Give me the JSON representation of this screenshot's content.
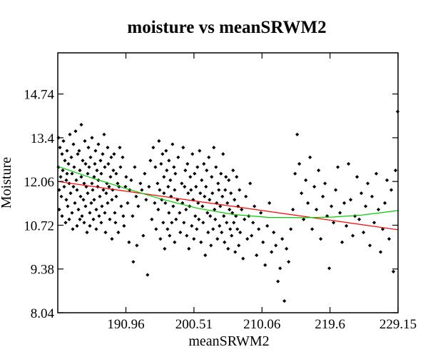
{
  "chart_data": {
    "type": "scatter",
    "title": "moisture vs meanSRWM2",
    "xlabel": "meanSRWM2",
    "ylabel": "Moisture",
    "xlim": [
      181.4,
      229.15
    ],
    "ylim": [
      8.04,
      16.0
    ],
    "x_ticks": [
      190.96,
      200.51,
      210.06,
      219.6,
      229.15
    ],
    "y_ticks": [
      8.04,
      9.38,
      10.72,
      12.06,
      13.4,
      14.74
    ],
    "grid": false,
    "legend": "none",
    "colors": {
      "points": "#000000",
      "linear_fit": "#ff0000",
      "poly_fit": "#00cc00"
    },
    "series": [
      {
        "kind": "points",
        "x": [
          181.5,
          181.5,
          181.6,
          181.6,
          181.7,
          181.8,
          181.9,
          182.0,
          182.0,
          182.1,
          182.2,
          182.3,
          182.4,
          182.5,
          182.6,
          182.6,
          182.7,
          182.7,
          182.8,
          182.9,
          183.0,
          183.0,
          183.1,
          183.2,
          183.3,
          183.4,
          183.4,
          183.5,
          183.6,
          183.6,
          183.7,
          183.8,
          183.9,
          184.0,
          184.1,
          184.1,
          184.2,
          184.3,
          184.4,
          184.5,
          184.5,
          184.6,
          184.7,
          184.7,
          184.8,
          184.9,
          185.0,
          185.1,
          185.1,
          185.2,
          185.3,
          185.3,
          185.4,
          185.5,
          185.6,
          185.6,
          185.7,
          185.8,
          185.9,
          185.9,
          186.0,
          186.1,
          186.2,
          186.2,
          186.3,
          186.4,
          186.5,
          186.5,
          186.6,
          186.7,
          186.8,
          186.8,
          186.9,
          187.0,
          187.1,
          187.1,
          187.2,
          187.3,
          187.4,
          187.5,
          187.5,
          187.6,
          187.7,
          187.8,
          187.9,
          188.0,
          188.0,
          188.1,
          188.2,
          188.3,
          188.4,
          188.4,
          188.5,
          188.6,
          188.7,
          188.8,
          188.9,
          189.0,
          189.0,
          189.1,
          189.2,
          189.3,
          189.4,
          189.5,
          189.6,
          189.6,
          189.8,
          189.9,
          190.0,
          190.1,
          190.2,
          190.3,
          190.5,
          190.6,
          190.7,
          190.9,
          191.0,
          191.2,
          191.4,
          191.5,
          191.7,
          191.9,
          192.0,
          192.2,
          192.4,
          192.5,
          192.7,
          193.0,
          193.2,
          193.4,
          193.6,
          193.8,
          194.0,
          194.2,
          194.4,
          194.6,
          194.8,
          195.0,
          195.1,
          195.2,
          195.4,
          195.5,
          195.6,
          195.7,
          195.8,
          195.9,
          196.0,
          196.1,
          196.2,
          196.3,
          196.3,
          196.4,
          196.5,
          196.6,
          196.7,
          196.8,
          196.9,
          197.0,
          197.0,
          197.1,
          197.2,
          197.3,
          197.4,
          197.5,
          197.6,
          197.7,
          197.8,
          197.8,
          197.9,
          198.0,
          198.2,
          198.3,
          198.5,
          198.6,
          198.8,
          198.9,
          199.0,
          199.1,
          199.2,
          199.3,
          199.4,
          199.5,
          199.6,
          199.7,
          199.8,
          199.9,
          200.0,
          200.1,
          200.2,
          200.3,
          200.4,
          200.5,
          200.6,
          200.7,
          200.8,
          200.9,
          201.0,
          201.1,
          201.2,
          201.3,
          201.4,
          201.5,
          201.6,
          201.7,
          201.8,
          201.9,
          202.0,
          202.1,
          202.2,
          202.3,
          202.4,
          202.5,
          202.6,
          202.7,
          202.8,
          202.9,
          203.0,
          203.1,
          203.2,
          203.3,
          203.4,
          203.5,
          203.6,
          203.7,
          203.8,
          203.9,
          204.0,
          204.1,
          204.2,
          204.3,
          204.4,
          204.5,
          204.6,
          204.7,
          204.8,
          204.9,
          205.0,
          205.1,
          205.2,
          205.3,
          205.4,
          205.5,
          205.6,
          205.7,
          205.8,
          205.9,
          206.0,
          206.1,
          206.2,
          206.3,
          206.4,
          206.5,
          206.6,
          206.7,
          206.8,
          206.9,
          207.0,
          207.2,
          207.4,
          207.6,
          207.8,
          208.0,
          208.2,
          208.4,
          208.6,
          208.8,
          209.0,
          209.3,
          209.6,
          209.9,
          210.2,
          210.5,
          210.8,
          211.1,
          211.4,
          211.7,
          212.0,
          212.3,
          212.6,
          212.9,
          213.2,
          213.5,
          213.8,
          214.1,
          214.4,
          214.7,
          215.0,
          215.3,
          215.6,
          215.9,
          216.2,
          216.5,
          216.8,
          217.1,
          217.4,
          217.7,
          218.0,
          218.3,
          218.6,
          218.9,
          219.2,
          219.5,
          219.8,
          220.1,
          220.4,
          220.7,
          221.0,
          221.3,
          221.6,
          221.9,
          222.2,
          222.5,
          222.8,
          223.1,
          223.4,
          223.7,
          224.0,
          224.3,
          224.6,
          224.9,
          225.2,
          225.5,
          225.8,
          226.1,
          226.4,
          226.7,
          227.0,
          227.3,
          227.6,
          227.9,
          228.2,
          228.5,
          228.8,
          229.1
        ],
        "y": [
          13.4,
          12.5,
          11.8,
          11.2,
          13.1,
          12.2,
          11.6,
          12.9,
          11.0,
          12.4,
          13.3,
          11.9,
          12.7,
          10.8,
          12.1,
          11.5,
          13.0,
          12.3,
          11.3,
          12.6,
          10.9,
          12.0,
          13.5,
          11.7,
          12.8,
          11.1,
          12.3,
          10.6,
          13.2,
          11.9,
          12.5,
          11.4,
          13.6,
          12.1,
          10.7,
          11.8,
          12.9,
          11.2,
          13.0,
          12.4,
          10.9,
          11.6,
          12.2,
          13.8,
          11.0,
          12.7,
          11.5,
          10.8,
          12.0,
          13.3,
          11.3,
          12.6,
          11.9,
          10.5,
          12.3,
          11.7,
          13.1,
          12.5,
          11.1,
          10.7,
          12.8,
          11.4,
          13.4,
          12.0,
          11.8,
          10.9,
          12.2,
          11.5,
          12.6,
          13.0,
          11.2,
          10.6,
          12.4,
          11.9,
          13.2,
          12.1,
          11.0,
          11.6,
          12.7,
          10.8,
          12.3,
          11.3,
          12.9,
          11.8,
          13.5,
          11.1,
          12.5,
          10.5,
          11.7,
          12.0,
          13.1,
          11.4,
          12.6,
          11.9,
          10.9,
          12.2,
          12.8,
          11.5,
          10.3,
          11.8,
          12.4,
          12.9,
          11.1,
          10.8,
          12.3,
          11.6,
          12.0,
          10.5,
          11.9,
          13.1,
          12.5,
          11.3,
          12.8,
          11.0,
          10.7,
          11.9,
          12.2,
          11.4,
          10.2,
          11.8,
          12.1,
          11.0,
          9.6,
          12.5,
          11.6,
          10.1,
          11.3,
          12.0,
          11.8,
          10.4,
          12.3,
          11.5,
          9.2,
          11.9,
          12.7,
          10.9,
          13.1,
          11.4,
          12.5,
          10.6,
          12.0,
          11.2,
          13.3,
          11.8,
          10.3,
          12.6,
          11.5,
          12.9,
          10.8,
          11.7,
          12.2,
          10.0,
          11.4,
          13.0,
          12.4,
          10.6,
          11.9,
          12.7,
          11.1,
          10.4,
          12.1,
          11.6,
          10.8,
          13.2,
          11.3,
          12.5,
          10.2,
          11.8,
          12.3,
          10.9,
          11.5,
          12.8,
          11.1,
          10.5,
          12.0,
          11.4,
          13.1,
          10.8,
          11.9,
          12.4,
          11.2,
          10.4,
          12.6,
          11.7,
          10.0,
          11.3,
          12.2,
          11.8,
          10.7,
          12.9,
          11.5,
          10.3,
          12.3,
          11.0,
          11.9,
          10.6,
          12.5,
          11.4,
          10.9,
          13.0,
          11.7,
          10.2,
          12.1,
          11.3,
          10.8,
          12.6,
          11.6,
          9.8,
          11.9,
          12.4,
          11.1,
          10.5,
          12.8,
          11.5,
          11.0,
          10.1,
          12.2,
          11.7,
          10.6,
          13.1,
          11.2,
          10.9,
          12.5,
          11.4,
          10.3,
          12.0,
          11.8,
          10.7,
          11.3,
          12.3,
          10.5,
          11.6,
          12.9,
          11.0,
          10.2,
          11.8,
          12.2,
          10.8,
          11.4,
          10.0,
          12.1,
          11.2,
          10.6,
          11.7,
          10.4,
          11.1,
          12.4,
          10.8,
          11.5,
          9.9,
          11.0,
          12.2,
          10.6,
          11.3,
          10.1,
          11.8,
          10.5,
          11.2,
          9.7,
          10.9,
          11.6,
          10.3,
          11.0,
          12.0,
          10.4,
          10.8,
          11.3,
          9.8,
          10.6,
          11.1,
          10.2,
          9.5,
          10.7,
          11.4,
          9.9,
          10.5,
          10.1,
          9.0,
          9.4,
          10.3,
          8.4,
          10.0,
          9.6,
          10.6,
          11.2,
          12.3,
          13.5,
          12.6,
          11.7,
          10.9,
          12.1,
          11.4,
          12.8,
          10.6,
          11.9,
          11.2,
          12.4,
          10.3,
          11.6,
          12.0,
          11.0,
          9.4,
          11.3,
          10.8,
          11.8,
          12.5,
          11.1,
          10.2,
          11.4,
          10.7,
          12.6,
          11.5,
          10.4,
          11.0,
          12.2,
          10.9,
          11.7,
          10.5,
          11.3,
          12.0,
          10.1,
          11.6,
          10.8,
          12.3,
          11.2,
          9.9,
          10.6,
          11.4,
          12.1,
          10.3,
          11.8,
          9.3,
          12.4,
          14.2
        ]
      },
      {
        "kind": "line",
        "style": "linear_fit",
        "x": [
          181.4,
          229.15
        ],
        "y": [
          12.06,
          10.58
        ]
      },
      {
        "kind": "line",
        "style": "poly_fit",
        "x": [
          181.4,
          186.0,
          191.0,
          196.0,
          201.0,
          206.0,
          211.0,
          216.0,
          220.0,
          224.0,
          229.15
        ],
        "y": [
          12.52,
          12.18,
          11.84,
          11.52,
          11.24,
          11.05,
          10.96,
          10.95,
          10.97,
          11.03,
          11.17
        ]
      }
    ]
  }
}
